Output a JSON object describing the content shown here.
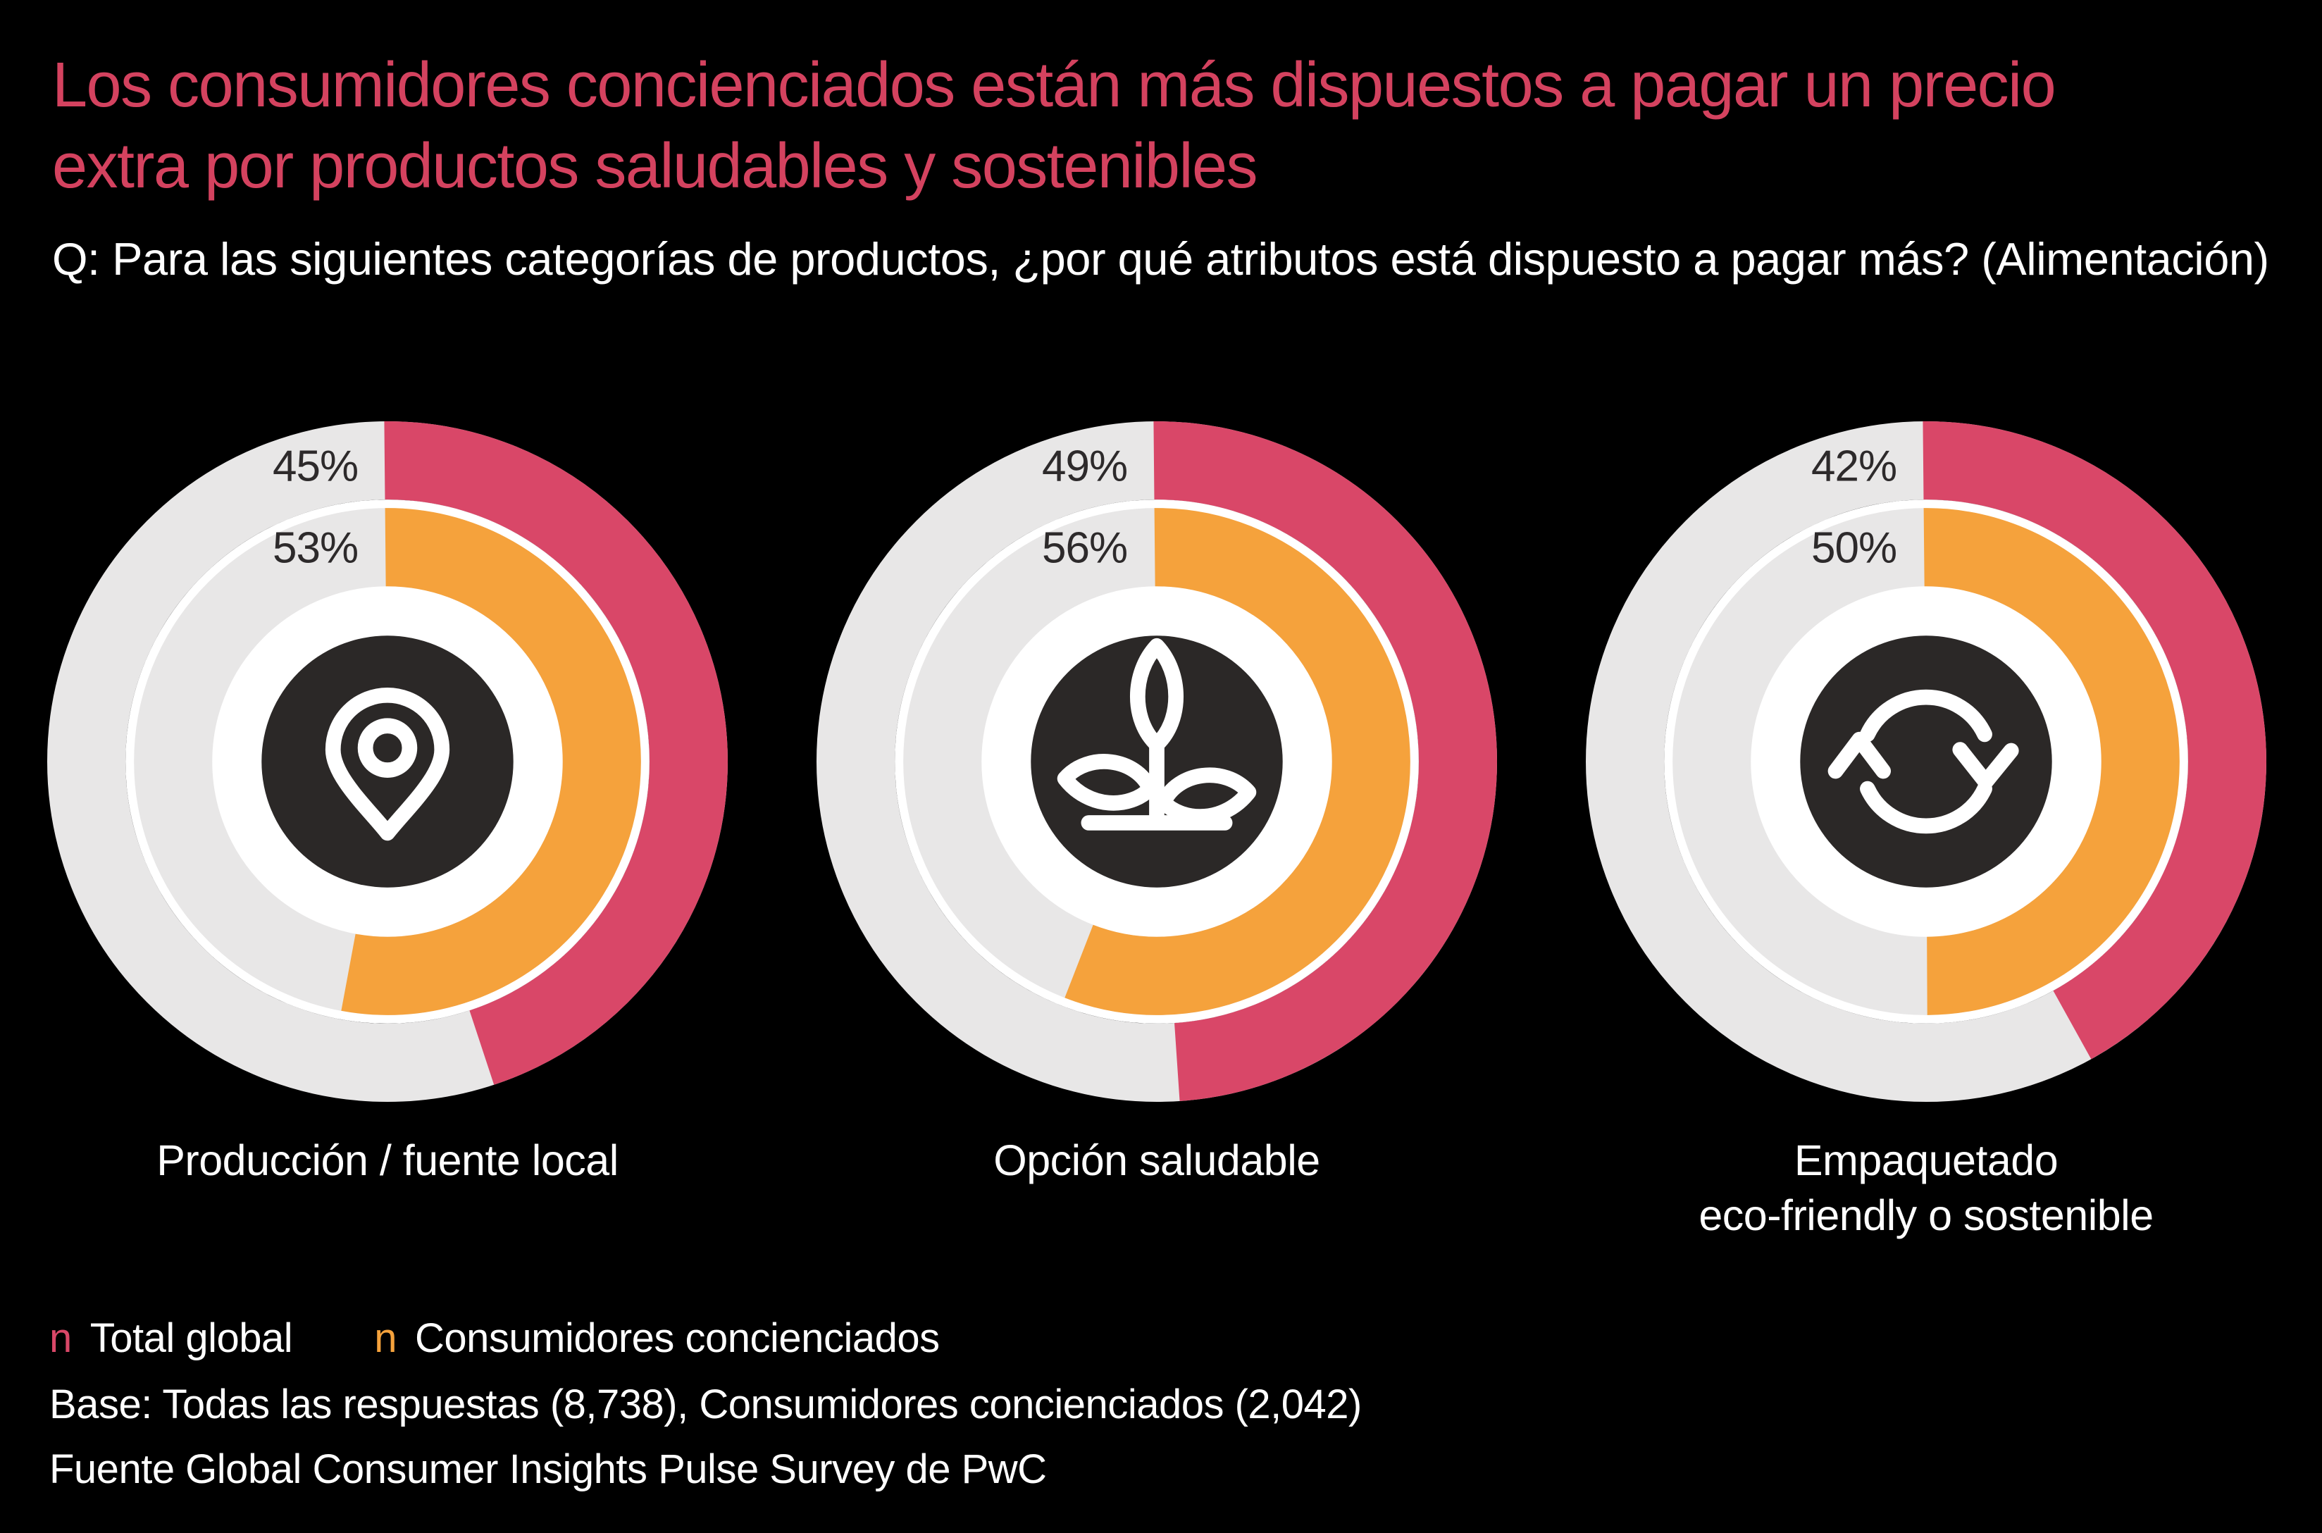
{
  "title": "Los consumidores concienciados están más dispuestos a pagar un precio\nextra por productos saludables y sostenibles",
  "question": "Q: Para las siguientes categorías de productos, ¿por qué atributos está dispuesto a pagar más? (Alimentación)",
  "colors": {
    "background": "#000000",
    "title": "#D4425F",
    "text": "#FFFFFF",
    "total_global": "#D94768",
    "concienciados": "#F5A23C",
    "track": "#E8E7E7",
    "separator": "#FFFFFF",
    "center_disc": "#2B2827",
    "percent_text": "#2D2A2B",
    "icon": "#FFFFFF"
  },
  "legend": [
    {
      "marker": "n",
      "label": "Total global",
      "color": "#D94768"
    },
    {
      "marker": "n",
      "label": "Consumidores concienciados",
      "color": "#F5A23C"
    }
  ],
  "base_note": "Base: Todas las respuestas (8,738), Consumidores concienciados (2,042)",
  "source": "Fuente Global Consumer Insights Pulse Survey de PwC",
  "chart_data": {
    "type": "donut",
    "unit": "%",
    "series": [
      "Total global",
      "Consumidores concienciados"
    ],
    "legend_position": "bottom-left",
    "ring_layout": "outer ring = Total global (rose), inner ring = Consumidores concienciados (orange), arcs start at 12 o'clock clockwise on light gray tracks",
    "donuts": [
      {
        "label": "Producción / fuente local",
        "icon": "location-pin",
        "values": {
          "total_global": 45,
          "concienciados": 53
        },
        "value_labels": {
          "total_global": "45%",
          "concienciados": "53%"
        }
      },
      {
        "label": "Opción saludable",
        "icon": "seedling",
        "values": {
          "total_global": 49,
          "concienciados": 56
        },
        "value_labels": {
          "total_global": "49%",
          "concienciados": "56%"
        }
      },
      {
        "label": "Empaquetado\neco-friendly o sostenible",
        "icon": "recycle-arrows",
        "values": {
          "total_global": 42,
          "concienciados": 50
        },
        "value_labels": {
          "total_global": "42%",
          "concienciados": "50%"
        }
      }
    ]
  }
}
